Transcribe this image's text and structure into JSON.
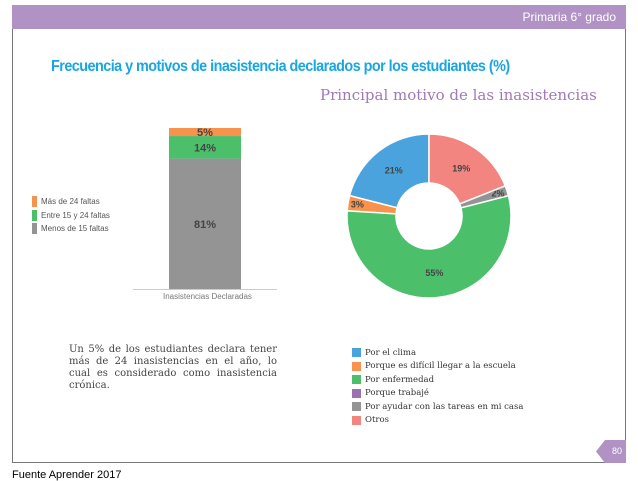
{
  "header": {
    "grade": "Primaria 6° grado"
  },
  "title": "Frecuencia y motivos de inasistencia declarados por los estudiantes (%)",
  "note": "Un 5% de los estudiantes declara tener más de 24 inasistencias en el año, lo cual es considerado como inasistencia crónica.",
  "page_number": "80",
  "source": "Fuente Aprender 2017",
  "chart_data": [
    {
      "type": "bar",
      "stacked": true,
      "categories": [
        "Inasistencias Declaradas"
      ],
      "series": [
        {
          "name": "Menos de 15 faltas",
          "values": [
            81
          ],
          "label": "81%",
          "color": "#949494"
        },
        {
          "name": "Entre 15 y 24 faltas",
          "values": [
            14
          ],
          "label": "14%",
          "color": "#4cbf6b"
        },
        {
          "name": "Más de 24 faltas",
          "values": [
            5
          ],
          "label": "5%",
          "color": "#f7934c"
        }
      ],
      "legend_order": [
        "Más de 24 faltas",
        "Entre 15 y 24 faltas",
        "Menos de 15 faltas"
      ],
      "ylim": [
        0,
        100
      ],
      "legend": "left"
    },
    {
      "type": "pie",
      "donut": true,
      "title": "Principal motivo de las inasistencias",
      "slices": [
        {
          "name": "Por el clima",
          "value": 21,
          "label": "21%",
          "color": "#4aa3dc"
        },
        {
          "name": "Porque es difícil llegar a la escuela",
          "value": 3,
          "label": "3%",
          "color": "#f7934c"
        },
        {
          "name": "Por enfermedad",
          "value": 55,
          "label": "55%",
          "color": "#4cbf6b"
        },
        {
          "name": "Porque trabajé",
          "value": 0,
          "label": "",
          "color": "#9b72b0"
        },
        {
          "name": "Por ayudar con las tareas en mi casa",
          "value": 2,
          "label": "2%",
          "color": "#949494"
        },
        {
          "name": "Otros",
          "value": 19,
          "label": "19%",
          "color": "#f28580"
        }
      ],
      "legend": "bottom"
    }
  ]
}
